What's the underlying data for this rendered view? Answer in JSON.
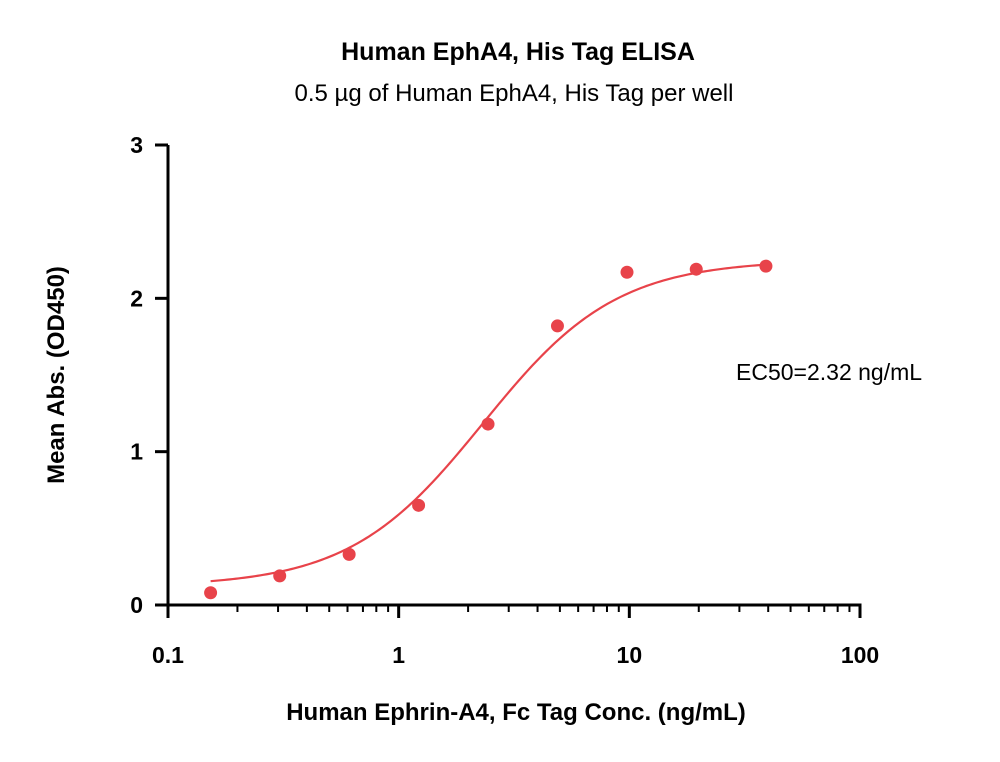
{
  "chart_data": {
    "type": "scatter",
    "title": "Human EphA4, His Tag ELISA",
    "subtitle": "0.5 µg of Human EphA4, His Tag per well",
    "xlabel": "Human Ephrin-A4, Fc Tag Conc. (ng/mL)",
    "ylabel": "Mean Abs. (OD450)",
    "x_scale": "log",
    "xlim": [
      0.1,
      100
    ],
    "ylim": [
      0,
      3
    ],
    "x_ticks": [
      0.1,
      1,
      10,
      100
    ],
    "x_tick_labels": [
      "0.1",
      "1",
      "10",
      "100"
    ],
    "y_ticks": [
      0,
      1,
      2,
      3
    ],
    "y_tick_labels": [
      "0",
      "1",
      "2",
      "3"
    ],
    "grid": false,
    "legend": "none",
    "series": [
      {
        "x": [
          0.153,
          0.305,
          0.61,
          1.22,
          2.44,
          4.88,
          9.77,
          19.5,
          39.1
        ],
        "y": [
          0.08,
          0.19,
          0.33,
          0.65,
          1.18,
          1.82,
          2.17,
          2.19,
          2.21
        ],
        "color": "#e8434a",
        "fit": "4PL"
      }
    ],
    "annotations": [
      "EC50=2.32 ng/mL"
    ]
  }
}
